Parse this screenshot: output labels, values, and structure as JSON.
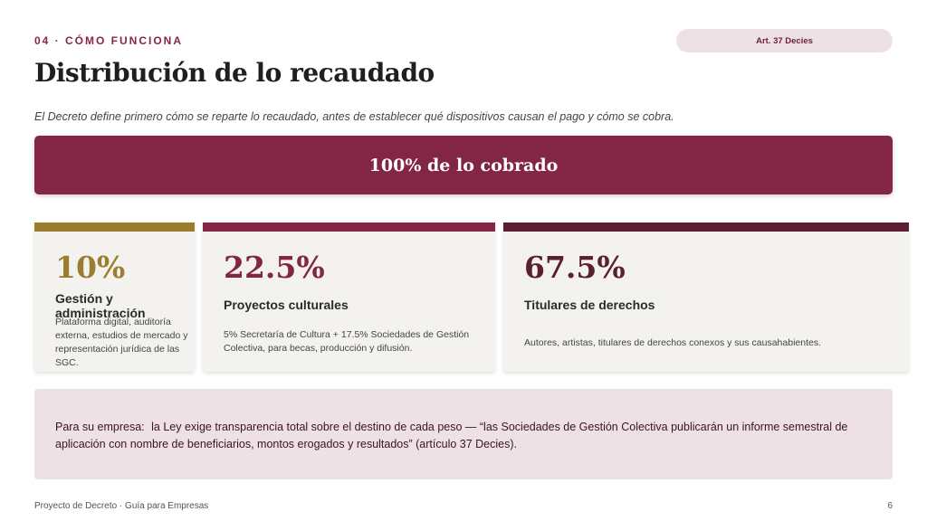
{
  "header": {
    "eyebrow": "04 · CÓMO FUNCIONA",
    "badge": "Art. 37 Decies",
    "title": "Distribución de lo recaudado",
    "subtitle": "El Decreto define primero cómo se reparte lo recaudado, antes de establecer qué dispositivos causan el pago y cómo se cobra."
  },
  "total_banner": "100% de lo cobrado",
  "cards": [
    {
      "percent": "10%",
      "name": "Gestión y administración",
      "description": "Plataforma digital, auditoría externa, estudios de mercado y representación jurídica de las SGC.",
      "color": "#9a7d2e"
    },
    {
      "percent": "22.5%",
      "name": "Proyectos culturales",
      "description": "5% Secretaría de Cultura + 17.5% Sociedades de Gestión Colectiva, para becas, producción y difusión.",
      "color": "#832646"
    },
    {
      "percent": "67.5%",
      "name": "Titulares de derechos",
      "description": "Autores, artistas, titulares de derechos conexos y sus causahabientes.",
      "color": "#5a1f30"
    }
  ],
  "note": {
    "lead": "Para su empresa:",
    "text": "la Ley exige transparencia total sobre el destino de cada peso — “las Sociedades de Gestión Colectiva publicarán un informe semestral de aplicación con nombre de beneficiarios, montos erogados y resultados” (artículo 37 Decies)."
  },
  "footer": {
    "left": "Proyecto de Decreto · Guía para Empresas",
    "page": "6"
  },
  "colors": {
    "accent": "#832646",
    "gold": "#9a7d2e",
    "dark_wine": "#5a1f30",
    "note_bg": "#ede1e6"
  }
}
